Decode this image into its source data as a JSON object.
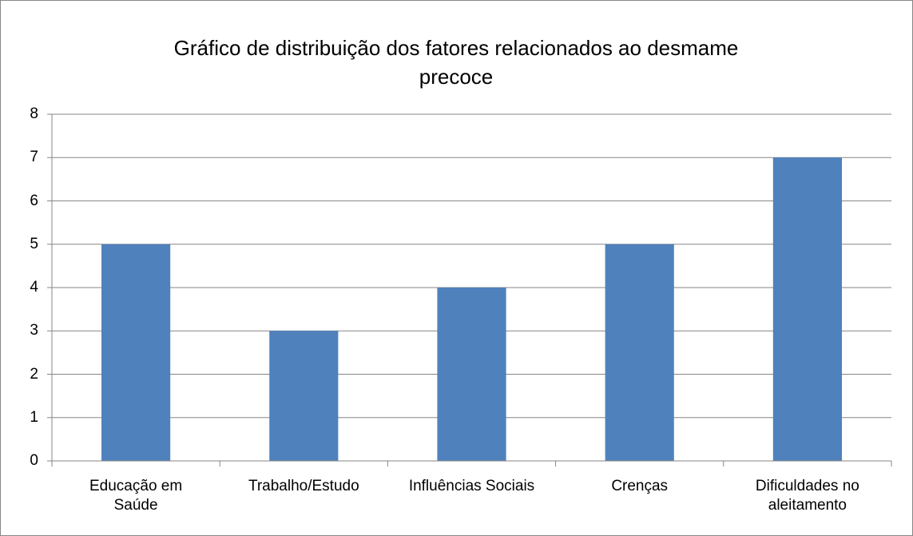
{
  "chart_data": {
    "type": "bar",
    "title": "Gráfico de distribuição dos fatores relacionados ao desmame precoce",
    "categories": [
      "Educação em Saúde",
      "Trabalho/Estudo",
      "Influências Sociais",
      "Crenças",
      "Dificuldades no aleitamento"
    ],
    "values": [
      5,
      3,
      4,
      5,
      7
    ],
    "color": "#4f81bd",
    "ylim": [
      0,
      8
    ],
    "yticks": [
      0,
      1,
      2,
      3,
      4,
      5,
      6,
      7,
      8
    ],
    "grid": true
  }
}
